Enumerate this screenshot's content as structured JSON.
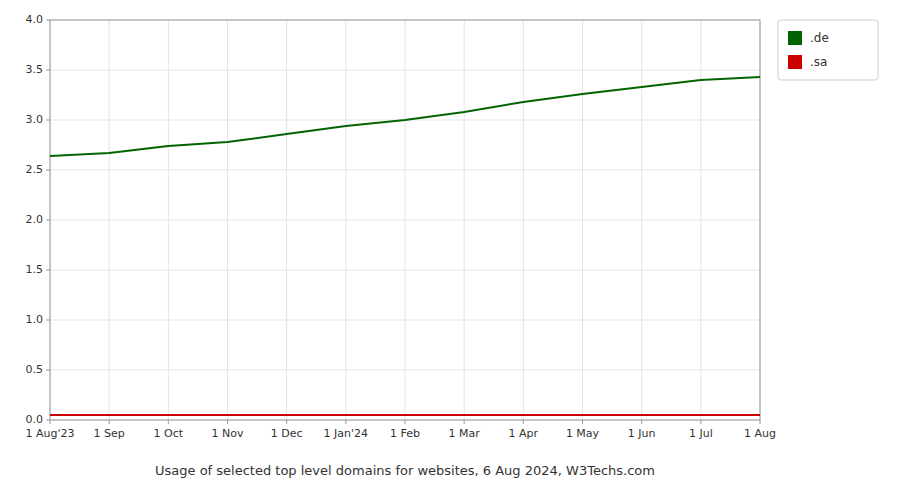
{
  "chart_data": {
    "type": "line",
    "title": "Usage of selected top level domains for websites, 6 Aug 2024, W3Techs.com",
    "categories": [
      "1 Aug'23",
      "1 Sep",
      "1 Oct",
      "1 Nov",
      "1 Dec",
      "1 Jan'24",
      "1 Feb",
      "1 Mar",
      "1 Apr",
      "1 May",
      "1 Jun",
      "1 Jul",
      "1 Aug"
    ],
    "series": [
      {
        "name": ".de",
        "color": "#006400",
        "values": [
          2.64,
          2.67,
          2.74,
          2.78,
          2.86,
          2.94,
          3.0,
          3.08,
          3.18,
          3.26,
          3.33,
          3.4,
          3.43
        ]
      },
      {
        "name": ".sa",
        "color": "#cc0000",
        "values": [
          0.05,
          0.05,
          0.05,
          0.05,
          0.05,
          0.05,
          0.05,
          0.05,
          0.05,
          0.05,
          0.05,
          0.05,
          0.05
        ]
      }
    ],
    "ylim": [
      0,
      4.0
    ],
    "yticks": [
      {
        "value": 0,
        "label": "0.0"
      },
      0.5,
      {
        "value": 1.0,
        "label": "1.0"
      },
      1.5,
      {
        "value": 2.0,
        "label": "2.0"
      },
      2.5,
      {
        "value": 3.0,
        "label": "3.0"
      },
      3.5,
      {
        "value": 4.0,
        "label": "4.0"
      }
    ],
    "grid": true,
    "legend": "upper right"
  }
}
